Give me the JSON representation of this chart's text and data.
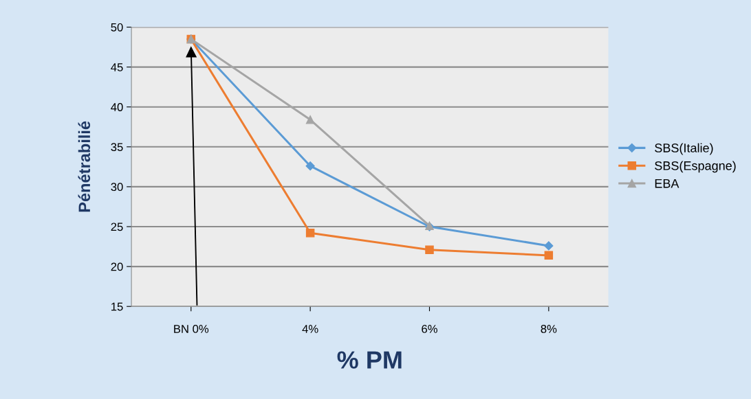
{
  "chart_data": {
    "type": "line",
    "xlabel": "% PM",
    "ylabel": "Pénétrabilié",
    "categories": [
      "BN 0%",
      "4%",
      "6%",
      "8%"
    ],
    "series": [
      {
        "name": "SBS(Italie)",
        "color": "#5b9bd5",
        "values": [
          48.5,
          32.6,
          25.0,
          22.6
        ],
        "marker": "diamond"
      },
      {
        "name": "SBS(Espagne)",
        "color": "#ed7d31",
        "values": [
          48.5,
          24.2,
          22.1,
          21.4
        ],
        "marker": "square"
      },
      {
        "name": "EBA",
        "color": "#a5a5a5",
        "values": [
          48.5,
          38.4,
          25.1,
          null
        ],
        "marker": "triangle"
      }
    ],
    "ylim": [
      15,
      50
    ],
    "yticks": [
      15,
      20,
      25,
      30,
      35,
      40,
      45,
      50
    ],
    "grid": "y",
    "legend": "right"
  }
}
